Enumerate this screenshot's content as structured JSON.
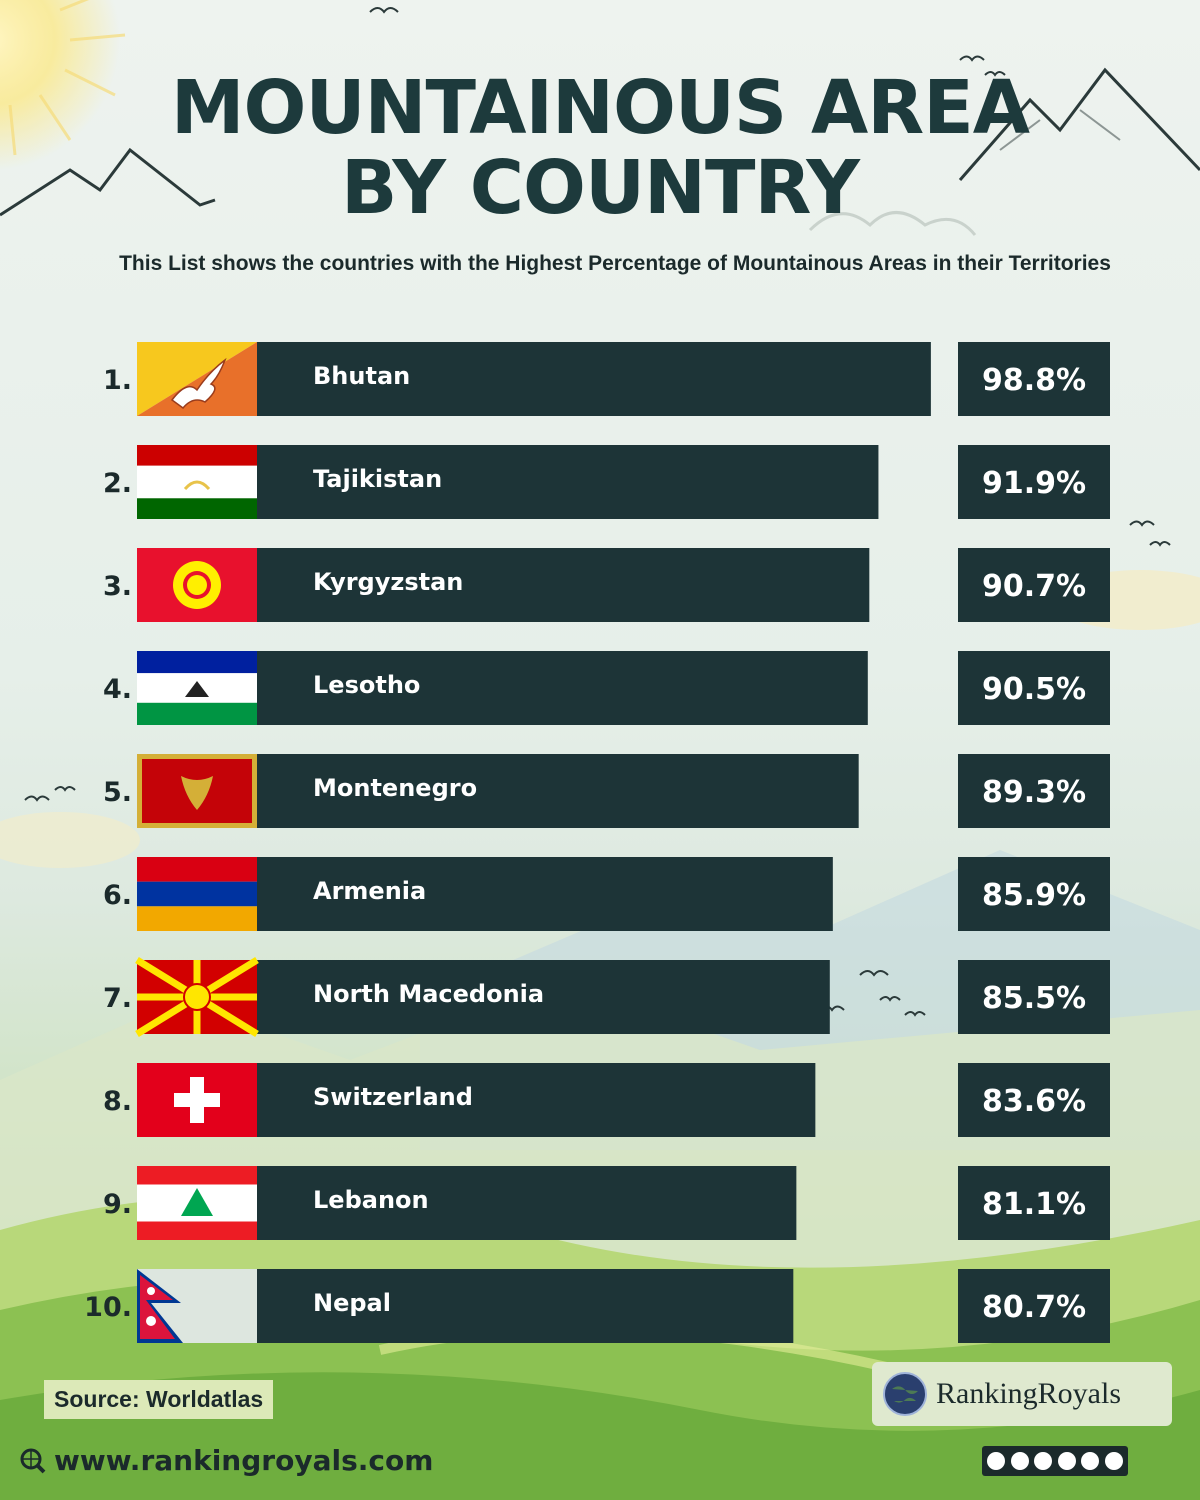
{
  "header": {
    "title_line1": "MOUNTAINOUS AREA",
    "title_line2": "BY COUNTRY",
    "subtitle": "This List shows the countries with the Highest Percentage of Mountainous Areas in their Territories"
  },
  "chart_data": {
    "type": "bar",
    "orientation": "horizontal",
    "categories": [
      "Bhutan",
      "Tajikistan",
      "Kyrgyzstan",
      "Lesotho",
      "Montenegro",
      "Armenia",
      "North Macedonia",
      "Switzerland",
      "Lebanon",
      "Nepal"
    ],
    "ranks": [
      "1.",
      "2.",
      "3.",
      "4.",
      "5.",
      "6.",
      "7.",
      "8.",
      "9.",
      "10."
    ],
    "values": [
      98.8,
      91.9,
      90.7,
      90.5,
      89.3,
      85.9,
      85.5,
      83.6,
      81.1,
      80.7
    ],
    "value_labels": [
      "98.8%",
      "91.9%",
      "90.7%",
      "90.5%",
      "89.3%",
      "85.9%",
      "85.5%",
      "83.6%",
      "81.1%",
      "80.7%"
    ],
    "flags": [
      "bhutan-flag",
      "tajikistan-flag",
      "kyrgyzstan-flag",
      "lesotho-flag",
      "montenegro-flag",
      "armenia-flag",
      "north-macedonia-flag",
      "switzerland-flag",
      "lebanon-flag",
      "nepal-flag"
    ],
    "bar_color": "#1d3437",
    "value_box_color": "#1d3437",
    "grid": false
  },
  "footer": {
    "source": "Source: Worldatlas",
    "website": "www.rankingroyals.com",
    "brand": "RankingRoyals"
  },
  "icons": {
    "website": "globe-search-icon",
    "brand": "globe-logo-icon",
    "socials": [
      "facebook-icon",
      "instagram-icon",
      "tiktok-icon",
      "youtube-icon",
      "pinterest-icon",
      "threads-icon"
    ]
  },
  "colors": {
    "title": "#1d3a3c",
    "bar": "#1d3437",
    "text_light": "#ffffff"
  }
}
